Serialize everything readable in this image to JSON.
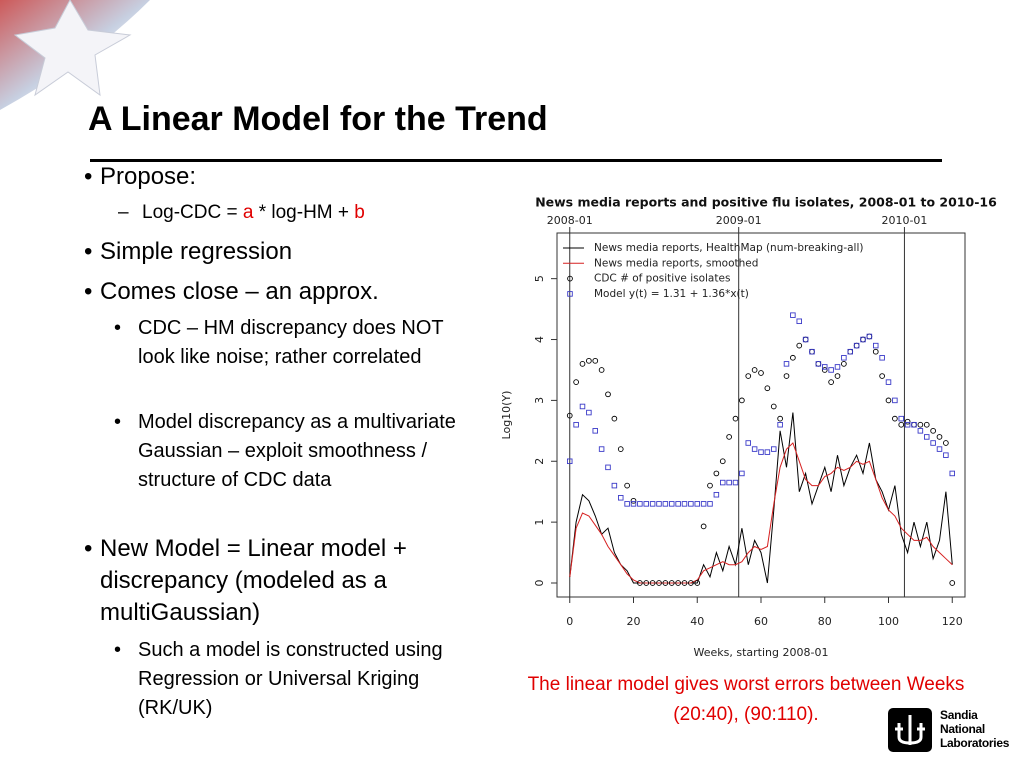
{
  "slide": {
    "title": "A Linear Model for the Trend",
    "bullets": [
      {
        "text": "Propose:",
        "level": 1
      },
      {
        "parts": [
          "Log-CDC = ",
          "a",
          " * log-HM + ",
          "b"
        ],
        "level": 2
      },
      {
        "text": "Simple regression",
        "level": 1
      },
      {
        "text": "Comes close – an approx.",
        "level": 1
      },
      {
        "text": "CDC – HM discrepancy does NOT look like noise; rather correlated",
        "level": 3
      },
      {
        "text": "Model discrepancy as a multivariate Gaussian – exploit smoothness / structure of CDC data",
        "level": 3
      },
      {
        "text": "New Model = Linear model + discrepancy (modeled as a multiGaussian)",
        "level": 1
      },
      {
        "text": "Such a model is constructed using  Regression or Universal Kriging (RK/UK)",
        "level": 3
      }
    ],
    "caption": "The linear model gives worst errors between Weeks (20:40), (90:110).",
    "logo": [
      "Sandia",
      "National",
      "Laboratories"
    ]
  },
  "chart_data": {
    "type": "line",
    "title": "News media reports and positive flu isolates, 2008-01 to 2010-16",
    "xlabel": "Weeks, starting 2008-01",
    "ylabel": "Log10(Y)",
    "x": [
      0,
      2,
      4,
      6,
      8,
      10,
      12,
      14,
      16,
      18,
      20,
      22,
      24,
      26,
      28,
      30,
      32,
      34,
      36,
      38,
      40,
      42,
      44,
      46,
      48,
      50,
      52,
      54,
      56,
      58,
      60,
      62,
      64,
      66,
      68,
      70,
      72,
      74,
      76,
      78,
      80,
      82,
      84,
      86,
      88,
      90,
      92,
      94,
      96,
      98,
      100,
      102,
      104,
      106,
      108,
      110,
      112,
      114,
      116,
      118,
      120
    ],
    "xlim": [
      -4,
      124
    ],
    "ylim": [
      -0.23,
      5.75
    ],
    "xticks": [
      0,
      20,
      40,
      60,
      80,
      100,
      120
    ],
    "yticks": [
      0,
      1,
      2,
      3,
      4,
      5
    ],
    "x2ticks": [
      {
        "value": 0,
        "label": "2008-01"
      },
      {
        "value": 53,
        "label": "2009-01"
      },
      {
        "value": 105,
        "label": "2010-01"
      }
    ],
    "legend": "upper left",
    "series": [
      {
        "name": "News media reports, HealthMap (num-breaking-all)",
        "color": "#000000",
        "marker": "none",
        "values": [
          0.1,
          1.0,
          1.45,
          1.35,
          1.1,
          0.8,
          0.9,
          0.5,
          0.3,
          0.2,
          0,
          0,
          0,
          0,
          0,
          0,
          0,
          0,
          0,
          0,
          0,
          0.3,
          0.1,
          0.5,
          0.2,
          0.6,
          0.3,
          0.9,
          0.3,
          0.7,
          0.5,
          0,
          1.2,
          2.5,
          1.9,
          2.8,
          1.5,
          1.8,
          1.3,
          1.6,
          1.9,
          1.5,
          2.1,
          1.6,
          1.9,
          2.1,
          1.8,
          2.3,
          1.7,
          1.5,
          1.2,
          1.6,
          0.8,
          0.5,
          1.0,
          0.6,
          1.0,
          0.4,
          0.7,
          1.5,
          0.3
        ]
      },
      {
        "name": "News media reports, smoothed",
        "color": "#d62020",
        "marker": "none",
        "values": [
          0.1,
          0.9,
          1.15,
          1.1,
          0.95,
          0.8,
          0.6,
          0.45,
          0.3,
          0.15,
          0.05,
          0,
          0,
          0,
          0,
          0,
          0,
          0,
          0,
          0,
          0.05,
          0.2,
          0.25,
          0.3,
          0.35,
          0.3,
          0.3,
          0.35,
          0.5,
          0.6,
          0.55,
          0.6,
          1.3,
          1.9,
          2.2,
          2.3,
          2.0,
          1.7,
          1.6,
          1.6,
          1.75,
          1.8,
          1.9,
          1.85,
          1.9,
          2.0,
          1.95,
          2.0,
          1.7,
          1.4,
          1.2,
          1.1,
          0.9,
          0.8,
          0.7,
          0.7,
          0.75,
          0.6,
          0.5,
          0.4,
          0.3
        ]
      },
      {
        "name": "CDC # of positive isolates",
        "color": "#000000",
        "marker": "circle",
        "values": [
          2.75,
          3.3,
          3.6,
          3.65,
          3.65,
          3.5,
          3.1,
          2.7,
          2.2,
          1.6,
          1.35,
          0,
          0,
          0,
          0,
          0,
          0,
          0,
          0,
          0,
          0,
          0.93,
          1.6,
          1.8,
          2.0,
          2.4,
          2.7,
          3.0,
          3.4,
          3.5,
          3.45,
          3.2,
          2.9,
          2.7,
          3.4,
          3.7,
          3.9,
          4.0,
          3.8,
          3.6,
          3.5,
          3.3,
          3.4,
          3.6,
          3.8,
          3.9,
          4.0,
          4.05,
          3.8,
          3.4,
          3.0,
          2.7,
          2.6,
          2.65,
          2.6,
          2.6,
          2.6,
          2.5,
          2.4,
          2.3,
          0
        ]
      },
      {
        "name": "Model y(t) = 1.31 + 1.36*x(t)",
        "color": "#3a3ac8",
        "marker": "square",
        "values": [
          2.0,
          2.6,
          2.9,
          2.8,
          2.5,
          2.2,
          1.9,
          1.6,
          1.4,
          1.3,
          1.3,
          1.3,
          1.3,
          1.3,
          1.3,
          1.3,
          1.3,
          1.3,
          1.3,
          1.3,
          1.3,
          1.3,
          1.3,
          1.45,
          1.65,
          1.65,
          1.65,
          1.8,
          2.3,
          2.2,
          2.15,
          2.15,
          2.2,
          2.6,
          3.6,
          4.4,
          4.3,
          4.0,
          3.8,
          3.6,
          3.55,
          3.5,
          3.55,
          3.7,
          3.8,
          3.9,
          4.0,
          4.05,
          3.9,
          3.7,
          3.3,
          3.0,
          2.7,
          2.6,
          2.6,
          2.5,
          2.4,
          2.3,
          2.2,
          2.1,
          1.8
        ]
      }
    ]
  }
}
